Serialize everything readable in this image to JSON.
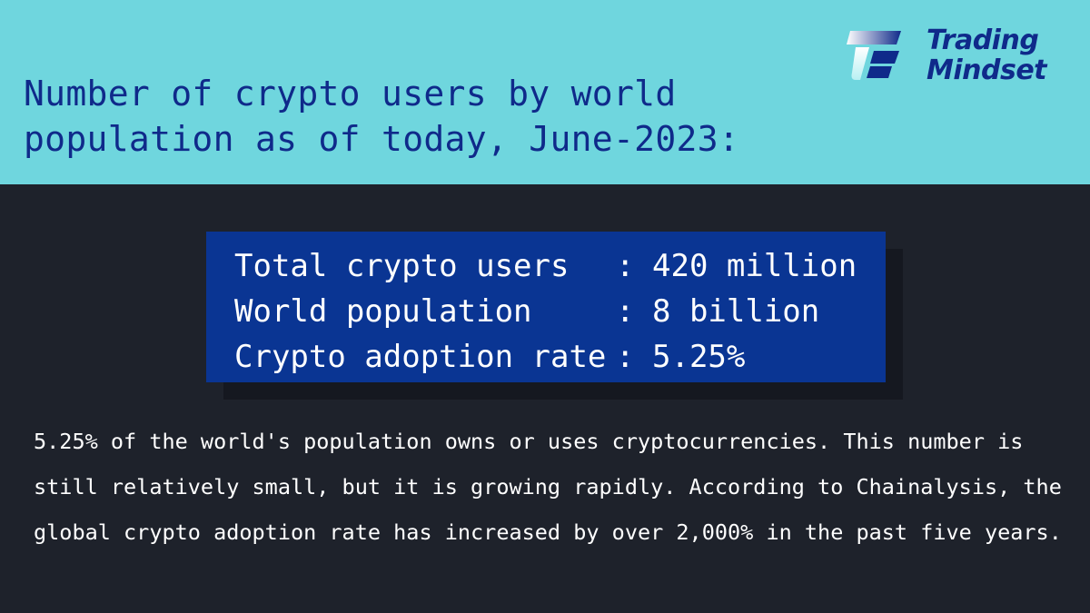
{
  "header": {
    "title": "Number of crypto users by world population as of today, June-2023:",
    "background_color": "#6fd6de",
    "title_color": "#0f2a8a"
  },
  "logo": {
    "line1": "Trading",
    "line2": "Mindset",
    "icon": "trading-mindset-logo-icon"
  },
  "stats": {
    "rows": [
      {
        "label": "Total crypto users",
        "separator": ":",
        "value": "420 million"
      },
      {
        "label": "World population",
        "separator": ":",
        "value": "8 billion"
      },
      {
        "label": "Crypto adoption rate",
        "separator": ":",
        "value": "5.25%"
      }
    ],
    "box_color": "#0a3593"
  },
  "body": {
    "paragraph": "5.25% of the world's population owns or uses cryptocurrencies. This number is still relatively small, but it is growing rapidly. According to Chainalysis, the global crypto adoption rate has increased by over 2,000% in the past five years."
  },
  "colors": {
    "page_background": "#1e222b",
    "text": "#ffffff"
  }
}
